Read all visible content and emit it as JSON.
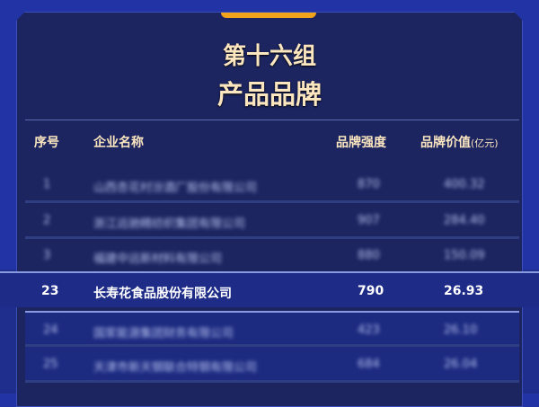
{
  "title_line1": "第十六组",
  "title_line2": "产品品牌",
  "headers": {
    "rank": "序号",
    "company": "企业名称",
    "strength": "品牌强度",
    "value": "品牌价值",
    "value_unit": "(亿元)"
  },
  "rows": [
    {
      "rank": "1",
      "company": "山西杏花村汾酒厂股份有限公司",
      "strength": "870",
      "value": "400.32"
    },
    {
      "rank": "2",
      "company": "浙江远驰精纺织集团有限公司",
      "strength": "907",
      "value": "284.40"
    },
    {
      "rank": "3",
      "company": "福建中远新材料有限公司",
      "strength": "880",
      "value": "150.09"
    },
    {
      "rank": "23",
      "company": "长寿花食品股份有限公司",
      "strength": "790",
      "value": "26.93"
    },
    {
      "rank": "24",
      "company": "国家能源集团财务有限公司",
      "strength": "423",
      "value": "26.10"
    },
    {
      "rank": "25",
      "company": "天津市新天钢联合特钢有限公司",
      "strength": "684",
      "value": "26.04"
    }
  ],
  "colors": {
    "accent": "#f2a31c",
    "title": "#fbe6c0",
    "panel": "#1c2560"
  }
}
